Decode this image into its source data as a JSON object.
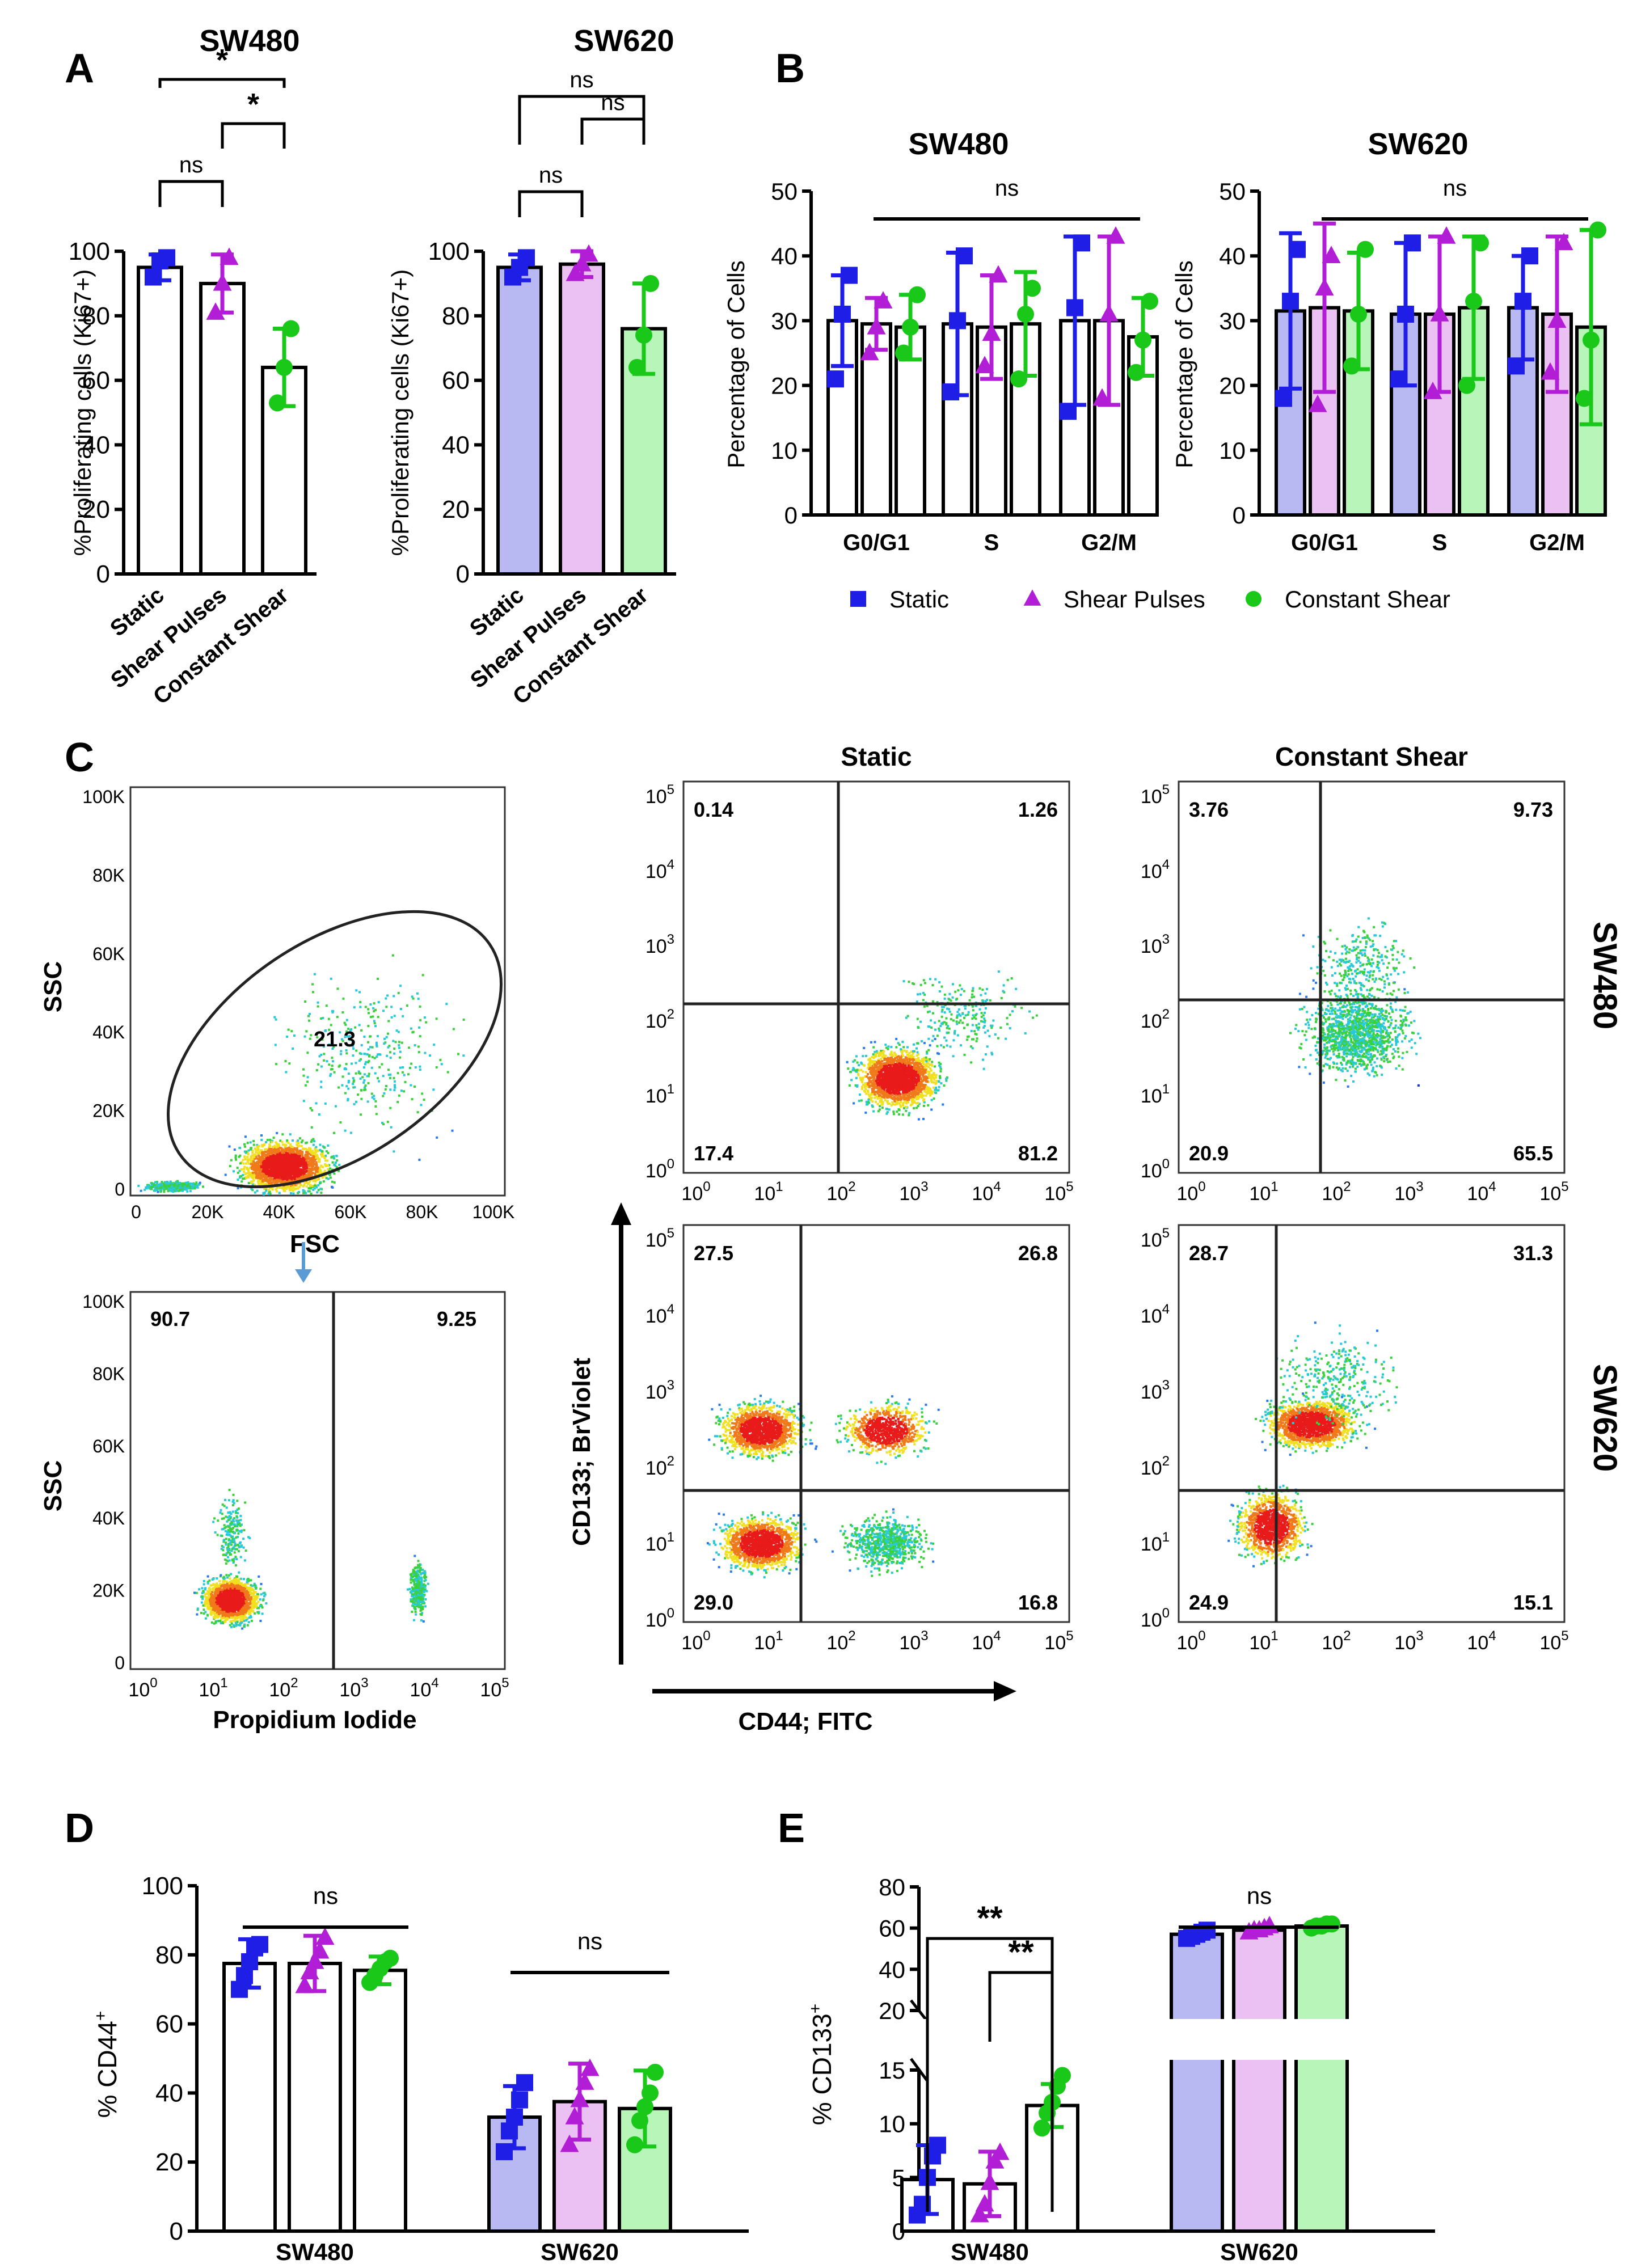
{
  "colors": {
    "static": "#1e1ee6",
    "shear_pulses": "#b21ed6",
    "constant_shear": "#19c819",
    "static_fill": "#b8b8f2",
    "shear_pulses_fill": "#ebc0f2",
    "constant_shear_fill": "#b8f5b8"
  },
  "labels": {
    "panel_a": "A",
    "panel_b": "B",
    "panel_c": "C",
    "panel_d": "D",
    "panel_e": "E",
    "legend_static": "Static",
    "legend_shear_pulses": "Shear Pulses",
    "legend_constant_shear": "Constant Shear",
    "flow_static": "Static",
    "flow_constant_shear": "Constant Shear",
    "row_sw480": "SW480",
    "row_sw620": "SW620",
    "cd133_axis": "CD133; BrViolet",
    "cd44_axis": "CD44; FITC",
    "scatter_xlabel": "FSC",
    "scatter_ylabel": "SSC",
    "pi_xlabel": "Propidium Iodide",
    "pi_ylabel": "SSC"
  },
  "chart_data": [
    {
      "id": "A1",
      "type": "bar",
      "title": "SW480",
      "ylabel": "%Proliferating cells (Ki67+)",
      "ylim": [
        0,
        100
      ],
      "yticks": [
        "0",
        "20",
        "40",
        "60",
        "80",
        "100"
      ],
      "categories": [
        "Static",
        "Shear Pulses",
        "Constant Shear"
      ],
      "values": [
        95,
        90,
        64
      ],
      "sd": [
        4,
        9,
        12
      ],
      "points": [
        [
          92,
          97,
          98
        ],
        [
          81,
          90,
          98
        ],
        [
          53,
          64,
          76
        ]
      ],
      "annotations": [
        "ns",
        "*",
        "*"
      ]
    },
    {
      "id": "A2",
      "type": "bar",
      "title": "SW620",
      "ylabel": "%Proliferating cells (Ki67+)",
      "ylim": [
        0,
        100
      ],
      "yticks": [
        "0",
        "20",
        "40",
        "60",
        "80",
        "100"
      ],
      "categories": [
        "Static",
        "Shear Pulses",
        "Constant Shear"
      ],
      "values": [
        95,
        96,
        76
      ],
      "sd": [
        4,
        4,
        14
      ],
      "points": [
        [
          92,
          95,
          98
        ],
        [
          93,
          96,
          99
        ],
        [
          64,
          74,
          90
        ]
      ],
      "annotations": [
        "ns",
        "ns",
        "ns"
      ]
    },
    {
      "id": "B1",
      "type": "bar",
      "title": "SW480",
      "ylabel": "Percentage of Cells",
      "ylim": [
        0,
        50
      ],
      "yticks": [
        "0",
        "10",
        "20",
        "30",
        "40",
        "50"
      ],
      "categories": [
        "G0/G1",
        "S",
        "G2/M"
      ],
      "series": [
        {
          "name": "Static",
          "values": [
            30,
            29.5,
            30
          ],
          "sd": [
            7,
            11,
            13
          ],
          "points": [
            [
              21,
              31,
              37
            ],
            [
              19,
              30,
              40
            ],
            [
              16,
              32,
              42
            ]
          ]
        },
        {
          "name": "Shear Pulses",
          "values": [
            29.5,
            29,
            30
          ],
          "sd": [
            4,
            8,
            13
          ],
          "points": [
            [
              25,
              29,
              33
            ],
            [
              23,
              28,
              37
            ],
            [
              18,
              31,
              43
            ]
          ]
        },
        {
          "name": "Constant Shear",
          "values": [
            29,
            29.5,
            27.5
          ],
          "sd": [
            5,
            8,
            6
          ],
          "points": [
            [
              25,
              29,
              34
            ],
            [
              21,
              31,
              35
            ],
            [
              22,
              27,
              33
            ]
          ]
        }
      ],
      "annotation": "ns"
    },
    {
      "id": "B2",
      "type": "bar",
      "title": "SW620",
      "ylabel": "Percentage of Cells",
      "ylim": [
        0,
        50
      ],
      "yticks": [
        "0",
        "10",
        "20",
        "30",
        "40",
        "50"
      ],
      "categories": [
        "G0/G1",
        "S",
        "G2/M"
      ],
      "series": [
        {
          "name": "Static",
          "values": [
            31.5,
            31,
            32
          ],
          "sd": [
            12,
            11,
            8
          ],
          "points": [
            [
              18,
              33,
              41
            ],
            [
              21,
              31,
              42
            ],
            [
              23,
              33,
              40
            ]
          ]
        },
        {
          "name": "Shear Pulses",
          "values": [
            32,
            31,
            31
          ],
          "sd": [
            13,
            12,
            12
          ],
          "points": [
            [
              17,
              35,
              40
            ],
            [
              19,
              31,
              43
            ],
            [
              22,
              30,
              42
            ]
          ]
        },
        {
          "name": "Constant Shear",
          "values": [
            31.5,
            32,
            29
          ],
          "sd": [
            9,
            11,
            15
          ],
          "points": [
            [
              23,
              31,
              41
            ],
            [
              20,
              33,
              42
            ],
            [
              18,
              27,
              44
            ]
          ]
        }
      ],
      "annotation": "ns"
    },
    {
      "id": "D",
      "type": "bar",
      "title": "",
      "ylabel": "% CD44+",
      "ylim": [
        0,
        100
      ],
      "yticks": [
        "0",
        "20",
        "40",
        "60",
        "80",
        "100"
      ],
      "categories": [
        "SW480",
        "SW620"
      ],
      "series": [
        {
          "name": "Static",
          "values": [
            77.5,
            33
          ],
          "sd": [
            7,
            9
          ],
          "points": [
            [
              70,
              74,
              78,
              82,
              83
            ],
            [
              23,
              29,
              33,
              38,
              43
            ]
          ]
        },
        {
          "name": "Shear Pulses",
          "values": [
            77.5,
            37.5
          ],
          "sd": [
            8,
            11
          ],
          "points": [
            [
              71,
              75,
              78,
              81,
              85
            ],
            [
              25,
              33,
              38,
              43,
              47
            ]
          ]
        },
        {
          "name": "Constant Shear",
          "values": [
            75.5,
            35.5
          ],
          "sd": [
            4,
            11
          ],
          "points": [
            [
              72,
              74,
              76,
              78,
              79
            ],
            [
              25,
              32,
              36,
              40,
              46
            ]
          ]
        }
      ],
      "annotations": [
        "ns",
        "ns"
      ]
    },
    {
      "id": "E",
      "type": "bar",
      "title": "",
      "ylabel": "% CD133+",
      "ylim": [
        0,
        80
      ],
      "axis_break": [
        15,
        20
      ],
      "yticks": [
        "0",
        "5",
        "10",
        "15",
        "20",
        "40",
        "60",
        "80"
      ],
      "categories": [
        "SW480",
        "SW620"
      ],
      "series": [
        {
          "name": "Static",
          "values": [
            4.8,
            57
          ],
          "sd": [
            3.2,
            2
          ],
          "points": [
            [
              1.5,
              2.5,
              5,
              7,
              8
            ],
            [
              55,
              56,
              57,
              58,
              59
            ]
          ]
        },
        {
          "name": "Shear Pulses",
          "values": [
            4.4,
            59
          ],
          "sd": [
            3,
            1.5
          ],
          "points": [
            [
              1.5,
              2.5,
              4.5,
              6.5,
              7.3
            ],
            [
              58,
              59,
              59,
              60,
              61
            ]
          ]
        },
        {
          "name": "Constant Shear",
          "values": [
            11.7,
            61
          ],
          "sd": [
            2,
            1
          ],
          "points": [
            [
              9.6,
              11,
              12,
              13.5,
              14.5
            ],
            [
              60,
              61,
              61,
              62,
              62
            ]
          ]
        }
      ],
      "annotations": [
        "**",
        "**",
        "ns"
      ]
    },
    {
      "id": "C-gate",
      "type": "scatter",
      "xlabel": "FSC",
      "ylabel": "SSC",
      "xticks": [
        "0",
        "20K",
        "40K",
        "60K",
        "80K",
        "100K"
      ],
      "yticks": [
        "0",
        "20K",
        "40K",
        "60K",
        "80K",
        "100K"
      ],
      "gate_value": "21.3"
    },
    {
      "id": "C-pi",
      "type": "scatter",
      "xlabel": "Propidium Iodide",
      "ylabel": "SSC",
      "yticks": [
        "0",
        "20K",
        "40K",
        "60K",
        "80K",
        "100K"
      ],
      "gate_values": [
        "90.7",
        "9.25"
      ]
    },
    {
      "id": "C-quadrants",
      "type": "scatter",
      "xlabel": "CD44; FITC",
      "ylabel": "CD133; BrViolet",
      "panels": [
        {
          "row": "SW480",
          "col": "Static",
          "quadrants": [
            "0.14",
            "1.26",
            "17.4",
            "81.2"
          ]
        },
        {
          "row": "SW480",
          "col": "Constant Shear",
          "quadrants": [
            "3.76",
            "9.73",
            "20.9",
            "65.5"
          ]
        },
        {
          "row": "SW620",
          "col": "Static",
          "quadrants": [
            "27.5",
            "26.8",
            "29.0",
            "16.8"
          ]
        },
        {
          "row": "SW620",
          "col": "Constant Shear",
          "quadrants": [
            "28.7",
            "31.3",
            "24.9",
            "15.1"
          ]
        }
      ]
    }
  ]
}
